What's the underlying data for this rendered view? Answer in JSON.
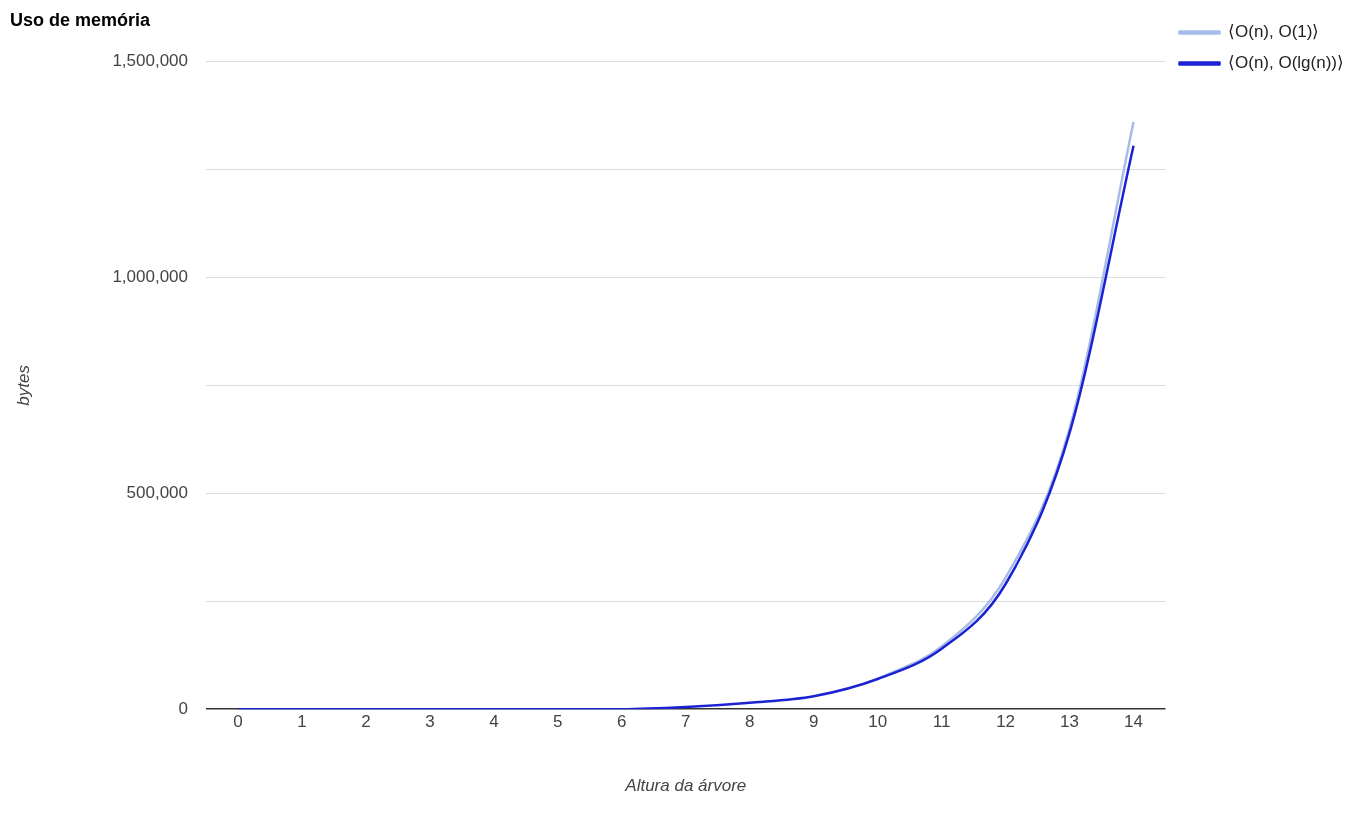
{
  "chart_data": {
    "type": "line",
    "title": "Uso de memória",
    "xlabel": "Altura da árvore",
    "ylabel": "bytes",
    "x": [
      0,
      1,
      2,
      3,
      4,
      5,
      6,
      7,
      8,
      9,
      10,
      11,
      12,
      13,
      14
    ],
    "series": [
      {
        "name": "⟨O(n), O(1)⟩",
        "color": "#a8bce8",
        "values": [
          null,
          null,
          null,
          null,
          null,
          null,
          null,
          null,
          null,
          null,
          70000,
          145000,
          305000,
          650000,
          1360000
        ]
      },
      {
        "name": "⟨O(n), O(lg(n))⟩",
        "color": "#1a22d4",
        "values": [
          0,
          0,
          0,
          0,
          0,
          0,
          0,
          5000,
          15000,
          30000,
          70000,
          140000,
          290000,
          640000,
          1305000
        ]
      }
    ],
    "xlim": [
      -0.5,
      14.5
    ],
    "xticks": [
      0,
      1,
      2,
      3,
      4,
      5,
      6,
      7,
      8,
      9,
      10,
      11,
      12,
      13,
      14
    ],
    "ylim": [
      0,
      1500000
    ],
    "yticks": [
      0,
      {
        "value": 250000,
        "label": null
      },
      {
        "value": 500000,
        "label": "500,000"
      },
      {
        "value": 750000,
        "label": null
      },
      {
        "value": 1000000,
        "label": "1,000,000"
      },
      {
        "value": 1250000,
        "label": null
      },
      {
        "value": 1500000,
        "label": "1,500,000"
      }
    ],
    "grid": "y",
    "legend": "top right",
    "marker": "none",
    "line_style": "solid"
  }
}
